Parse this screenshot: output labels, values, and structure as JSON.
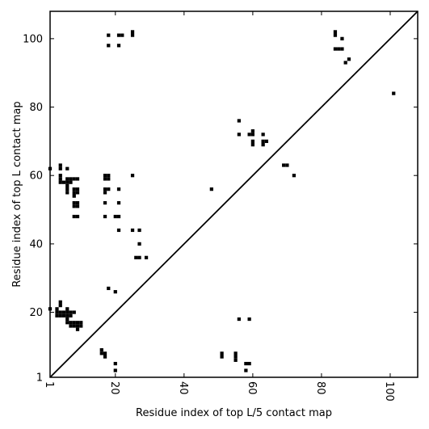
{
  "chart_data": {
    "type": "scatter",
    "title": "",
    "xlabel": "Residue index of top L/5 contact map",
    "ylabel": "Residue index of top L contact map",
    "xlim": [
      1,
      108
    ],
    "ylim": [
      1,
      108
    ],
    "xticks": [
      1,
      20,
      40,
      60,
      80,
      100
    ],
    "yticks": [
      1,
      20,
      40,
      60,
      80,
      100
    ],
    "xtick_labels": [
      "1",
      "20",
      "40",
      "60",
      "80",
      "100"
    ],
    "ytick_labels": [
      "1",
      "20",
      "40",
      "60",
      "80",
      "100"
    ],
    "xtick_rotation_deg": -90,
    "grid": false,
    "marker": "square",
    "marker_color": "#000000",
    "diagonal_line": {
      "from": [
        1,
        1
      ],
      "to": [
        108,
        108
      ],
      "color": "#000000"
    },
    "upper_left_points": [
      [
        18,
        101
      ],
      [
        21,
        101
      ],
      [
        22,
        101
      ],
      [
        25,
        101
      ],
      [
        25,
        102
      ],
      [
        18,
        98
      ],
      [
        21,
        98
      ],
      [
        84,
        102
      ],
      [
        84,
        101
      ],
      [
        86,
        100
      ],
      [
        84,
        97
      ],
      [
        85,
        97
      ],
      [
        86,
        97
      ],
      [
        88,
        94
      ],
      [
        87,
        93
      ],
      [
        101,
        84
      ],
      [
        56,
        76
      ],
      [
        56,
        72
      ],
      [
        59,
        72
      ],
      [
        60,
        73
      ],
      [
        60,
        72
      ],
      [
        63,
        72
      ],
      [
        60,
        70
      ],
      [
        60,
        69
      ],
      [
        63,
        70
      ],
      [
        64,
        70
      ],
      [
        63,
        69
      ],
      [
        69,
        63
      ],
      [
        70,
        63
      ],
      [
        72,
        60
      ],
      [
        1,
        62
      ],
      [
        4,
        63
      ],
      [
        4,
        62
      ],
      [
        6,
        62
      ],
      [
        4,
        60
      ],
      [
        4,
        59
      ],
      [
        6,
        59
      ],
      [
        7,
        59
      ],
      [
        8,
        59
      ],
      [
        9,
        59
      ],
      [
        4,
        58
      ],
      [
        5,
        58
      ],
      [
        6,
        58
      ],
      [
        7,
        58
      ],
      [
        6,
        57
      ],
      [
        6,
        56
      ],
      [
        8,
        56
      ],
      [
        9,
        56
      ],
      [
        6,
        55
      ],
      [
        8,
        55
      ],
      [
        9,
        55
      ],
      [
        8,
        54
      ],
      [
        8,
        52
      ],
      [
        9,
        52
      ],
      [
        8,
        51
      ],
      [
        9,
        51
      ],
      [
        8,
        48
      ],
      [
        9,
        48
      ],
      [
        17,
        60
      ],
      [
        18,
        60
      ],
      [
        17,
        59
      ],
      [
        18,
        59
      ],
      [
        17,
        56
      ],
      [
        18,
        56
      ],
      [
        21,
        56
      ],
      [
        17,
        55
      ],
      [
        17,
        52
      ],
      [
        21,
        52
      ],
      [
        17,
        48
      ],
      [
        20,
        48
      ],
      [
        21,
        48
      ],
      [
        21,
        44
      ],
      [
        25,
        44
      ],
      [
        27,
        44
      ],
      [
        25,
        60
      ],
      [
        48,
        56
      ],
      [
        27,
        40
      ],
      [
        26,
        36
      ],
      [
        27,
        36
      ],
      [
        29,
        36
      ],
      [
        1,
        21
      ],
      [
        3,
        21
      ],
      [
        6,
        21
      ],
      [
        4,
        23
      ],
      [
        4,
        22
      ],
      [
        3,
        20
      ],
      [
        4,
        20
      ],
      [
        5,
        20
      ],
      [
        6,
        20
      ],
      [
        7,
        20
      ],
      [
        8,
        20
      ],
      [
        3,
        19
      ],
      [
        4,
        19
      ],
      [
        5,
        19
      ],
      [
        6,
        19
      ],
      [
        7,
        19
      ],
      [
        6,
        18
      ],
      [
        6,
        17
      ],
      [
        7,
        17
      ],
      [
        8,
        17
      ],
      [
        9,
        17
      ],
      [
        10,
        17
      ],
      [
        7,
        16
      ],
      [
        8,
        16
      ],
      [
        9,
        16
      ],
      [
        10,
        16
      ],
      [
        9,
        15
      ],
      [
        18,
        27
      ],
      [
        20,
        26
      ]
    ],
    "lower_right_points": [
      [
        56,
        18
      ],
      [
        59,
        18
      ],
      [
        16,
        9
      ],
      [
        16,
        8
      ],
      [
        17,
        8
      ],
      [
        17,
        7
      ],
      [
        51,
        8
      ],
      [
        51,
        7
      ],
      [
        55,
        8
      ],
      [
        55,
        7
      ],
      [
        55,
        6
      ],
      [
        58,
        5
      ],
      [
        59,
        5
      ],
      [
        20,
        5
      ],
      [
        20,
        3
      ],
      [
        58,
        3
      ]
    ]
  }
}
